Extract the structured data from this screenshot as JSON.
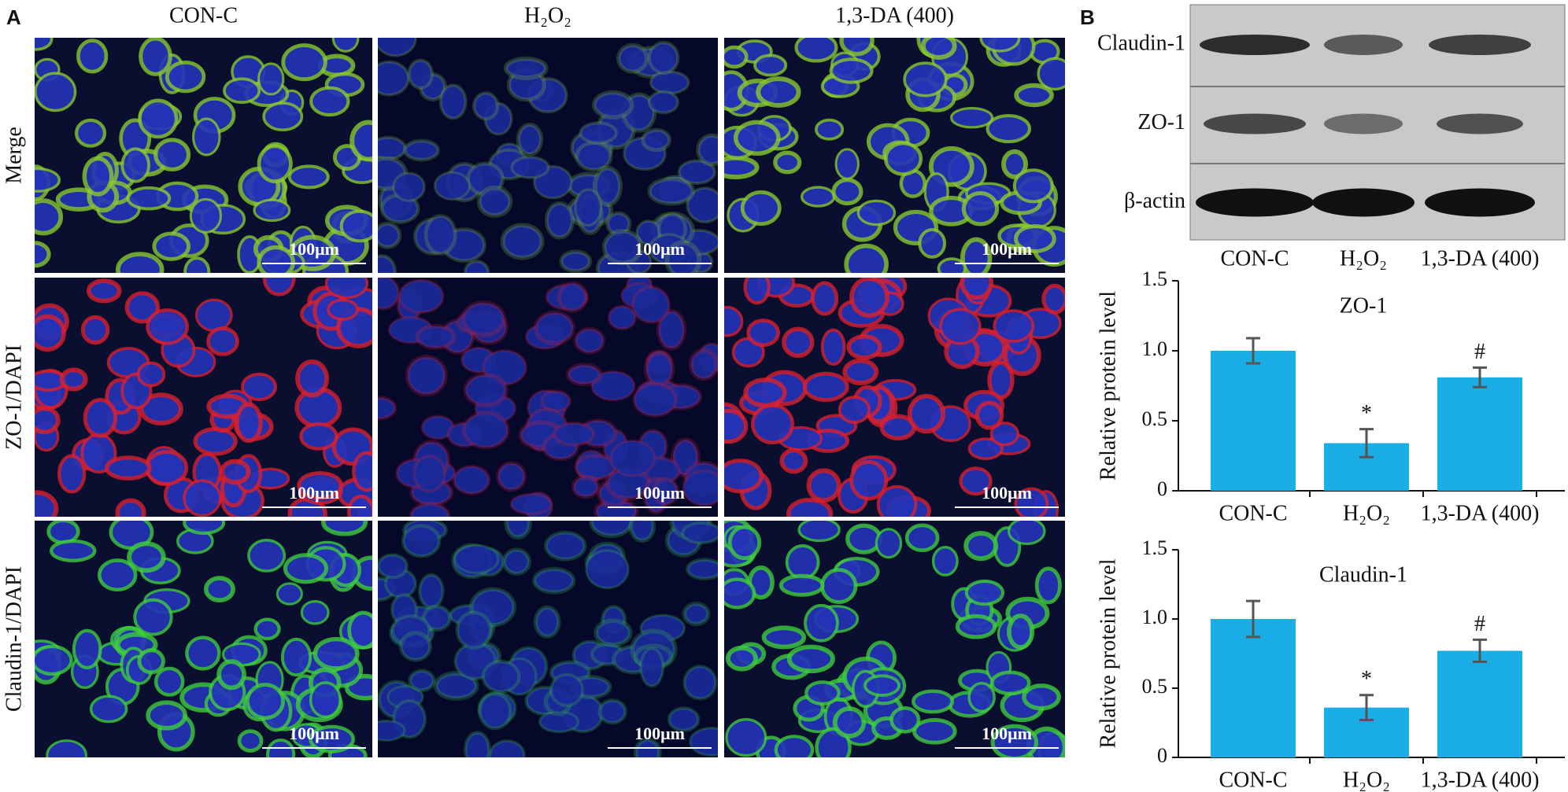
{
  "panel_a": {
    "label": "A",
    "columns": [
      "CON-C",
      "H₂O₂",
      "1,3-DA (400)"
    ],
    "rows": [
      "Merge",
      "ZO-1/DAPI",
      "Claudin-1/DAPI"
    ],
    "scale_bar": "100μm"
  },
  "panel_b": {
    "label": "B",
    "blot_rows": [
      "Claudin-1",
      "ZO-1",
      "β-actin"
    ],
    "blot_lanes": [
      "CON-C",
      "H₂O₂",
      "1,3-DA (400)"
    ]
  },
  "chart_data": [
    {
      "type": "bar",
      "title": "ZO-1",
      "ylabel": "Relative protein level",
      "categories": [
        "CON-C",
        "H₂O₂",
        "1,3-DA (400)"
      ],
      "values": [
        1.0,
        0.34,
        0.81
      ],
      "errors": [
        0.09,
        0.1,
        0.07
      ],
      "significance": [
        null,
        "*",
        "#"
      ],
      "color": "#1aaee6",
      "error_color": "#555555",
      "ylim": [
        0,
        1.5
      ],
      "yticks": [
        0,
        0.5,
        {
          "value": 1,
          "label": "1.0"
        },
        1.5
      ]
    },
    {
      "type": "bar",
      "title": "Claudin-1",
      "ylabel": "Relative protein level",
      "categories": [
        "CON-C",
        "H₂O₂",
        "1,3-DA (400)"
      ],
      "values": [
        1.0,
        0.36,
        0.77
      ],
      "errors": [
        0.13,
        0.09,
        0.08
      ],
      "significance": [
        null,
        "*",
        "#"
      ],
      "color": "#1aaee6",
      "error_color": "#555555",
      "ylim": [
        0,
        1.5
      ],
      "yticks": [
        0,
        0.5,
        {
          "value": 1,
          "label": "1.0"
        },
        1.5
      ]
    }
  ]
}
